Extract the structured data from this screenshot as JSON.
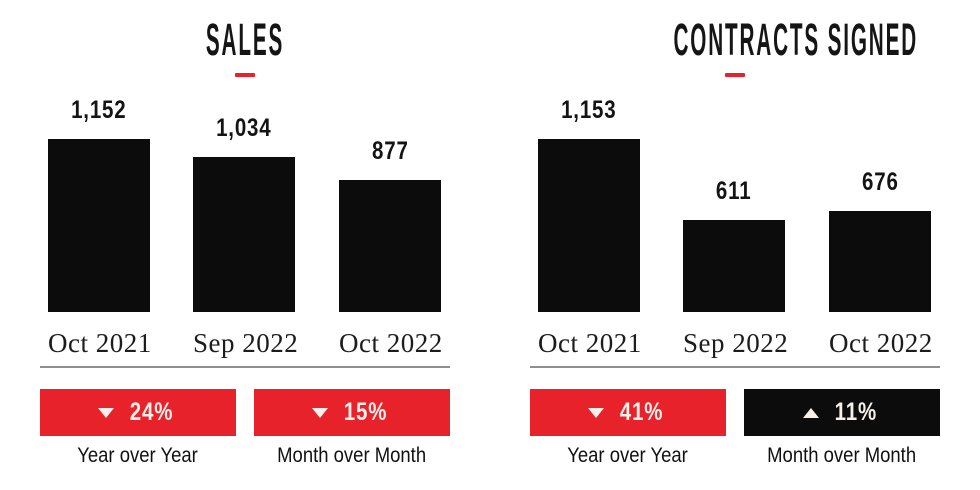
{
  "colors": {
    "bar_black": "#0c0c0c",
    "accent_red": "#e8222b",
    "badge_black": "#0c0c0c",
    "badge_text": "#f6efea",
    "divider_gray": "#8e8e8e"
  },
  "chart_data": [
    {
      "type": "bar",
      "title": "SALES",
      "categories": [
        "Oct 2021",
        "Sep 2022",
        "Oct 2022"
      ],
      "values": [
        1152,
        1034,
        877
      ],
      "value_labels": [
        "1,152",
        "1,034",
        "877"
      ],
      "xlabel": "",
      "ylabel": "",
      "ylim": [
        0,
        1200
      ],
      "grid": false,
      "legend": "none",
      "badges": [
        {
          "direction": "down",
          "value": "24%",
          "label": "Year over Year",
          "change": "-24%"
        },
        {
          "direction": "down",
          "value": "15%",
          "label": "Month over Month",
          "change": "-15%"
        }
      ]
    },
    {
      "type": "bar",
      "title": "CONTRACTS SIGNED",
      "categories": [
        "Oct 2021",
        "Sep 2022",
        "Oct 2022"
      ],
      "values": [
        1153,
        611,
        676
      ],
      "value_labels": [
        "1,153",
        "611",
        "676"
      ],
      "xlabel": "",
      "ylabel": "",
      "ylim": [
        0,
        1200
      ],
      "grid": false,
      "legend": "none",
      "badges": [
        {
          "direction": "down",
          "value": "41%",
          "label": "Year over Year",
          "change": "-41%"
        },
        {
          "direction": "up",
          "value": "11%",
          "label": "Month over Month",
          "change": "+11%"
        }
      ]
    }
  ]
}
